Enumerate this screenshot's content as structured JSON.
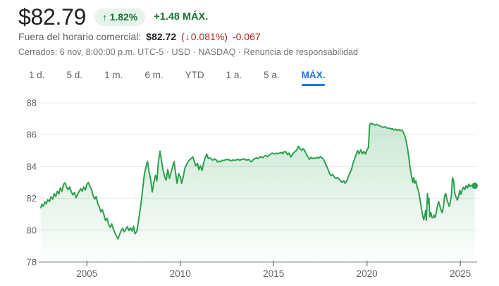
{
  "colors": {
    "price_text": "#202124",
    "up_green_text": "#137333",
    "badge_bg": "#e6f4ea",
    "down_red_text": "#b3261e",
    "active_tab_blue": "#1a73e8",
    "secondary_gray": "#5f6368",
    "tertiary_gray": "#70757a"
  },
  "icons": {
    "up_arrow": "↑",
    "down_arrow": "↓"
  },
  "header": {
    "price": "$82.79",
    "change_pct": "1.82%",
    "change_abs": "+1.48 MÁX.",
    "after_hours_label": "Fuera del horario comercial:",
    "after_hours_price": "$82.72",
    "after_hours_pct_open": "(",
    "after_hours_pct": "0.081%)",
    "after_hours_abs": "-0.067",
    "closed_info": "Cerrados: 6 nov, 8:00:00 p.m. UTC-5 · USD · NASDAQ ·",
    "disclaimer_link": "Renuncia de responsabilidad"
  },
  "tabs": {
    "items": [
      {
        "label": "1 d.",
        "active": false
      },
      {
        "label": "5 d.",
        "active": false
      },
      {
        "label": "1 m.",
        "active": false
      },
      {
        "label": "6 m.",
        "active": false
      },
      {
        "label": "YTD",
        "active": false
      },
      {
        "label": "1 a.",
        "active": false
      },
      {
        "label": "5 a.",
        "active": false
      },
      {
        "label": "MÁX.",
        "active": true
      }
    ]
  },
  "chart_data": {
    "type": "area",
    "title": "",
    "xlabel": "",
    "ylabel": "",
    "grid": true,
    "legend": false,
    "xlim": [
      2002.5,
      2025.9
    ],
    "ylim": [
      78,
      88
    ],
    "x_ticks": [
      2005,
      2010,
      2015,
      2020,
      2025
    ],
    "y_ticks": [
      88,
      86,
      84,
      82,
      80,
      78
    ],
    "line_color": "#2da04f",
    "fill_from": "rgba(45,160,79,0.28)",
    "fill_to": "rgba(45,160,79,0.01)",
    "end_dot": true,
    "last_value": 82.79,
    "points": [
      [
        2002.53,
        81.42
      ],
      [
        2002.6,
        81.62
      ],
      [
        2002.67,
        81.5
      ],
      [
        2002.75,
        81.78
      ],
      [
        2002.83,
        81.65
      ],
      [
        2002.9,
        81.92
      ],
      [
        2003.0,
        81.8
      ],
      [
        2003.08,
        82.1
      ],
      [
        2003.17,
        81.95
      ],
      [
        2003.25,
        82.3
      ],
      [
        2003.33,
        82.12
      ],
      [
        2003.42,
        82.45
      ],
      [
        2003.5,
        82.28
      ],
      [
        2003.58,
        82.65
      ],
      [
        2003.67,
        82.45
      ],
      [
        2003.75,
        82.88
      ],
      [
        2003.83,
        82.98
      ],
      [
        2003.92,
        82.7
      ],
      [
        2004.0,
        82.55
      ],
      [
        2004.08,
        82.72
      ],
      [
        2004.17,
        82.4
      ],
      [
        2004.25,
        82.22
      ],
      [
        2004.33,
        82.38
      ],
      [
        2004.42,
        82.05
      ],
      [
        2004.5,
        82.25
      ],
      [
        2004.58,
        82.42
      ],
      [
        2004.67,
        82.6
      ],
      [
        2004.75,
        82.45
      ],
      [
        2004.83,
        82.72
      ],
      [
        2004.92,
        82.52
      ],
      [
        2005.0,
        82.88
      ],
      [
        2005.08,
        83.0
      ],
      [
        2005.17,
        82.75
      ],
      [
        2005.25,
        82.55
      ],
      [
        2005.33,
        82.18
      ],
      [
        2005.42,
        81.95
      ],
      [
        2005.5,
        82.12
      ],
      [
        2005.58,
        81.7
      ],
      [
        2005.67,
        81.45
      ],
      [
        2005.75,
        81.15
      ],
      [
        2005.83,
        81.3
      ],
      [
        2005.92,
        80.95
      ],
      [
        2006.0,
        80.6
      ],
      [
        2006.08,
        80.75
      ],
      [
        2006.17,
        80.35
      ],
      [
        2006.25,
        80.18
      ],
      [
        2006.33,
        80.4
      ],
      [
        2006.42,
        80.05
      ],
      [
        2006.5,
        79.85
      ],
      [
        2006.58,
        79.62
      ],
      [
        2006.67,
        79.45
      ],
      [
        2006.75,
        79.72
      ],
      [
        2006.83,
        79.95
      ],
      [
        2006.92,
        80.12
      ],
      [
        2007.0,
        79.9
      ],
      [
        2007.08,
        80.05
      ],
      [
        2007.17,
        80.22
      ],
      [
        2007.25,
        79.98
      ],
      [
        2007.33,
        80.15
      ],
      [
        2007.42,
        79.95
      ],
      [
        2007.5,
        80.25
      ],
      [
        2007.58,
        79.78
      ],
      [
        2007.67,
        79.92
      ],
      [
        2007.75,
        80.45
      ],
      [
        2007.83,
        81.1
      ],
      [
        2007.92,
        81.85
      ],
      [
        2008.0,
        82.7
      ],
      [
        2008.08,
        83.5
      ],
      [
        2008.17,
        84.0
      ],
      [
        2008.25,
        84.32
      ],
      [
        2008.33,
        83.65
      ],
      [
        2008.42,
        83.15
      ],
      [
        2008.5,
        82.4
      ],
      [
        2008.58,
        82.95
      ],
      [
        2008.67,
        83.45
      ],
      [
        2008.75,
        83.1
      ],
      [
        2008.83,
        84.3
      ],
      [
        2008.92,
        84.97
      ],
      [
        2009.0,
        84.35
      ],
      [
        2009.08,
        83.8
      ],
      [
        2009.17,
        83.35
      ],
      [
        2009.25,
        83.15
      ],
      [
        2009.33,
        83.82
      ],
      [
        2009.42,
        83.25
      ],
      [
        2009.5,
        83.6
      ],
      [
        2009.58,
        83.95
      ],
      [
        2009.67,
        84.3
      ],
      [
        2009.75,
        83.6
      ],
      [
        2009.83,
        82.95
      ],
      [
        2009.92,
        83.55
      ],
      [
        2010.0,
        83.35
      ],
      [
        2010.08,
        82.95
      ],
      [
        2010.17,
        83.4
      ],
      [
        2010.25,
        83.9
      ],
      [
        2010.33,
        84.1
      ],
      [
        2010.42,
        84.3
      ],
      [
        2010.5,
        84.42
      ],
      [
        2010.58,
        84.5
      ],
      [
        2010.67,
        84.6
      ],
      [
        2010.75,
        84.35
      ],
      [
        2010.83,
        84.05
      ],
      [
        2010.92,
        84.2
      ],
      [
        2011.0,
        83.8
      ],
      [
        2011.08,
        84.05
      ],
      [
        2011.17,
        83.75
      ],
      [
        2011.25,
        84.2
      ],
      [
        2011.33,
        84.55
      ],
      [
        2011.42,
        84.78
      ],
      [
        2011.5,
        84.5
      ],
      [
        2011.58,
        84.55
      ],
      [
        2011.67,
        84.45
      ],
      [
        2011.75,
        84.4
      ],
      [
        2011.83,
        84.48
      ],
      [
        2011.92,
        84.42
      ],
      [
        2012.0,
        84.28
      ],
      [
        2012.08,
        84.35
      ],
      [
        2012.17,
        84.3
      ],
      [
        2012.25,
        84.4
      ],
      [
        2012.33,
        84.38
      ],
      [
        2012.42,
        84.42
      ],
      [
        2012.5,
        84.45
      ],
      [
        2012.58,
        84.42
      ],
      [
        2012.67,
        84.4
      ],
      [
        2012.75,
        84.35
      ],
      [
        2012.83,
        84.42
      ],
      [
        2012.92,
        84.38
      ],
      [
        2013.0,
        84.42
      ],
      [
        2013.08,
        84.45
      ],
      [
        2013.17,
        84.4
      ],
      [
        2013.25,
        84.42
      ],
      [
        2013.33,
        84.45
      ],
      [
        2013.42,
        84.48
      ],
      [
        2013.5,
        84.42
      ],
      [
        2013.58,
        84.4
      ],
      [
        2013.67,
        84.45
      ],
      [
        2013.75,
        84.35
      ],
      [
        2013.83,
        84.3
      ],
      [
        2013.92,
        84.45
      ],
      [
        2014.0,
        84.5
      ],
      [
        2014.08,
        84.55
      ],
      [
        2014.17,
        84.5
      ],
      [
        2014.25,
        84.58
      ],
      [
        2014.33,
        84.62
      ],
      [
        2014.42,
        84.55
      ],
      [
        2014.5,
        84.65
      ],
      [
        2014.58,
        84.7
      ],
      [
        2014.67,
        84.62
      ],
      [
        2014.75,
        84.72
      ],
      [
        2014.83,
        84.78
      ],
      [
        2014.92,
        84.85
      ],
      [
        2015.0,
        84.8
      ],
      [
        2015.08,
        84.78
      ],
      [
        2015.17,
        84.85
      ],
      [
        2015.25,
        84.8
      ],
      [
        2015.33,
        84.85
      ],
      [
        2015.42,
        84.88
      ],
      [
        2015.5,
        84.82
      ],
      [
        2015.58,
        84.95
      ],
      [
        2015.67,
        84.9
      ],
      [
        2015.75,
        84.75
      ],
      [
        2015.83,
        84.85
      ],
      [
        2015.92,
        84.6
      ],
      [
        2016.0,
        84.75
      ],
      [
        2016.08,
        84.88
      ],
      [
        2016.17,
        84.95
      ],
      [
        2016.25,
        85.05
      ],
      [
        2016.33,
        85.28
      ],
      [
        2016.42,
        85.1
      ],
      [
        2016.5,
        85.02
      ],
      [
        2016.58,
        85.12
      ],
      [
        2016.67,
        85.0
      ],
      [
        2016.75,
        84.78
      ],
      [
        2016.83,
        84.62
      ],
      [
        2016.92,
        84.45
      ],
      [
        2017.0,
        84.58
      ],
      [
        2017.08,
        84.5
      ],
      [
        2017.17,
        84.55
      ],
      [
        2017.25,
        84.5
      ],
      [
        2017.33,
        84.58
      ],
      [
        2017.42,
        84.52
      ],
      [
        2017.5,
        84.62
      ],
      [
        2017.58,
        84.55
      ],
      [
        2017.67,
        84.45
      ],
      [
        2017.75,
        84.25
      ],
      [
        2017.83,
        84.05
      ],
      [
        2017.92,
        83.8
      ],
      [
        2018.0,
        83.55
      ],
      [
        2018.08,
        83.42
      ],
      [
        2018.17,
        83.5
      ],
      [
        2018.25,
        83.35
      ],
      [
        2018.33,
        83.25
      ],
      [
        2018.42,
        83.32
      ],
      [
        2018.5,
        83.22
      ],
      [
        2018.58,
        83.1
      ],
      [
        2018.67,
        83.0
      ],
      [
        2018.75,
        83.12
      ],
      [
        2018.83,
        82.95
      ],
      [
        2018.92,
        83.1
      ],
      [
        2019.0,
        83.35
      ],
      [
        2019.08,
        83.6
      ],
      [
        2019.17,
        83.8
      ],
      [
        2019.25,
        84.2
      ],
      [
        2019.33,
        84.45
      ],
      [
        2019.42,
        84.75
      ],
      [
        2019.5,
        85.0
      ],
      [
        2019.58,
        84.8
      ],
      [
        2019.67,
        85.05
      ],
      [
        2019.75,
        84.8
      ],
      [
        2019.83,
        84.95
      ],
      [
        2019.92,
        84.78
      ],
      [
        2020.0,
        85.05
      ],
      [
        2020.08,
        85.2
      ],
      [
        2020.14,
        86.6
      ],
      [
        2020.2,
        86.72
      ],
      [
        2020.28,
        86.68
      ],
      [
        2020.36,
        86.65
      ],
      [
        2020.45,
        86.6
      ],
      [
        2020.53,
        86.65
      ],
      [
        2020.61,
        86.58
      ],
      [
        2020.7,
        86.55
      ],
      [
        2020.78,
        86.5
      ],
      [
        2020.86,
        86.45
      ],
      [
        2020.95,
        86.5
      ],
      [
        2021.03,
        86.45
      ],
      [
        2021.11,
        86.4
      ],
      [
        2021.2,
        86.42
      ],
      [
        2021.28,
        86.35
      ],
      [
        2021.36,
        86.38
      ],
      [
        2021.45,
        86.3
      ],
      [
        2021.53,
        86.35
      ],
      [
        2021.61,
        86.28
      ],
      [
        2021.7,
        86.32
      ],
      [
        2021.78,
        86.25
      ],
      [
        2021.86,
        86.3
      ],
      [
        2021.95,
        86.15
      ],
      [
        2022.03,
        85.9
      ],
      [
        2022.1,
        85.6
      ],
      [
        2022.17,
        85.15
      ],
      [
        2022.24,
        84.6
      ],
      [
        2022.31,
        83.9
      ],
      [
        2022.38,
        83.45
      ],
      [
        2022.45,
        83.0
      ],
      [
        2022.5,
        83.3
      ],
      [
        2022.56,
        82.95
      ],
      [
        2022.62,
        83.1
      ],
      [
        2022.68,
        82.7
      ],
      [
        2022.74,
        82.55
      ],
      [
        2022.8,
        82.2
      ],
      [
        2022.86,
        81.8
      ],
      [
        2022.92,
        81.35
      ],
      [
        2022.98,
        80.95
      ],
      [
        2023.04,
        80.65
      ],
      [
        2023.1,
        80.95
      ],
      [
        2023.14,
        81.25
      ],
      [
        2023.18,
        80.62
      ],
      [
        2023.24,
        82.3
      ],
      [
        2023.28,
        81.7
      ],
      [
        2023.32,
        82.0
      ],
      [
        2023.36,
        80.85
      ],
      [
        2023.42,
        81.1
      ],
      [
        2023.47,
        80.82
      ],
      [
        2023.53,
        80.78
      ],
      [
        2023.59,
        80.95
      ],
      [
        2023.65,
        80.8
      ],
      [
        2023.71,
        81.1
      ],
      [
        2023.78,
        81.55
      ],
      [
        2023.84,
        81.8
      ],
      [
        2023.9,
        81.55
      ],
      [
        2023.97,
        81.25
      ],
      [
        2024.03,
        81.1
      ],
      [
        2024.1,
        81.55
      ],
      [
        2024.16,
        82.15
      ],
      [
        2024.22,
        82.3
      ],
      [
        2024.28,
        81.95
      ],
      [
        2024.34,
        81.72
      ],
      [
        2024.4,
        81.5
      ],
      [
        2024.46,
        81.75
      ],
      [
        2024.52,
        82.15
      ],
      [
        2024.58,
        83.3
      ],
      [
        2024.64,
        83.1
      ],
      [
        2024.7,
        82.35
      ],
      [
        2024.78,
        82.05
      ],
      [
        2024.84,
        81.9
      ],
      [
        2024.9,
        82.1
      ],
      [
        2024.97,
        82.5
      ],
      [
        2025.03,
        82.25
      ],
      [
        2025.1,
        82.55
      ],
      [
        2025.17,
        82.7
      ],
      [
        2025.24,
        82.55
      ],
      [
        2025.31,
        82.8
      ],
      [
        2025.38,
        82.65
      ],
      [
        2025.45,
        82.9
      ],
      [
        2025.52,
        82.75
      ],
      [
        2025.59,
        82.82
      ],
      [
        2025.66,
        82.85
      ],
      [
        2025.72,
        82.78
      ],
      [
        2025.77,
        82.79
      ]
    ]
  }
}
